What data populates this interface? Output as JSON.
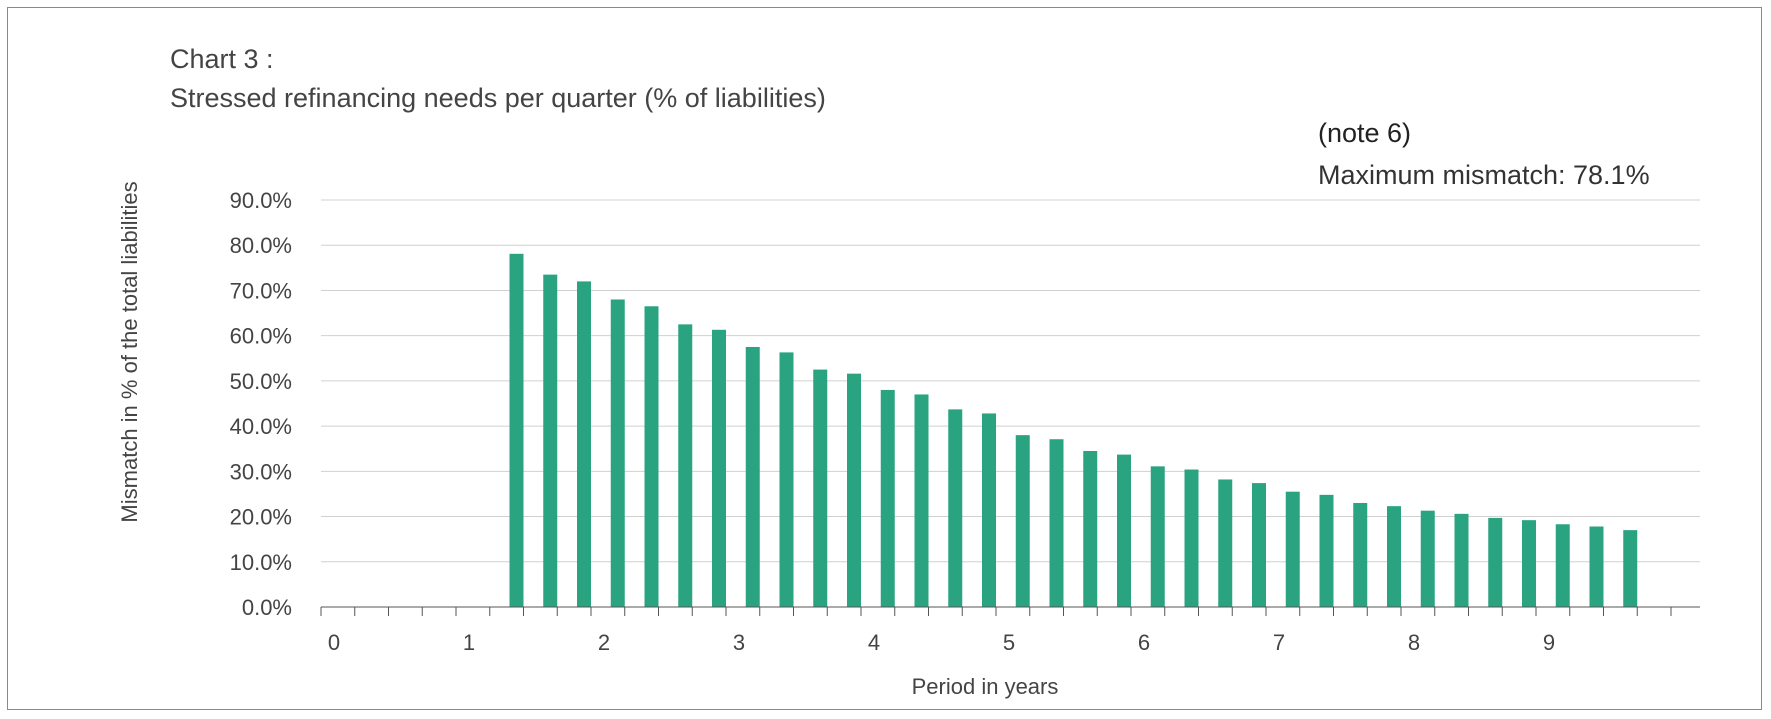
{
  "title_line1": "Chart 3 :",
  "title_line2": "Stressed refinancing needs per quarter  (% of liabilities)",
  "note": "(note 6)",
  "max_mismatch": "Maximum mismatch: 78.1%",
  "chart_data": {
    "type": "bar",
    "title": "Stressed refinancing needs per quarter  (% of liabilities)",
    "xlabel": "Period in years",
    "ylabel": "Mismatch in % of the total liabilities",
    "ylim": [
      0,
      90
    ],
    "yticks": [
      "0.0%",
      "10.0%",
      "20.0%",
      "30.0%",
      "40.0%",
      "50.0%",
      "60.0%",
      "70.0%",
      "80.0%",
      "90.0%"
    ],
    "xticks": [
      "0",
      "1",
      "2",
      "3",
      "4",
      "5",
      "6",
      "7",
      "8",
      "9"
    ],
    "grid": true,
    "bar_color": "#2aa381",
    "x": [
      1.5,
      1.75,
      2.0,
      2.25,
      2.5,
      2.75,
      3.0,
      3.25,
      3.5,
      3.75,
      4.0,
      4.25,
      4.5,
      4.75,
      5.0,
      5.25,
      5.5,
      5.75,
      6.0,
      6.25,
      6.5,
      6.75,
      7.0,
      7.25,
      7.5,
      7.75,
      8.0,
      8.25,
      8.5,
      8.75,
      9.0,
      9.25,
      9.5,
      9.75
    ],
    "values": [
      78.1,
      73.5,
      72.0,
      68.0,
      66.5,
      62.5,
      61.3,
      57.5,
      56.3,
      52.5,
      51.6,
      48.0,
      47.0,
      43.7,
      42.8,
      38.0,
      37.1,
      34.5,
      33.7,
      31.1,
      30.4,
      28.2,
      27.4,
      25.5,
      24.8,
      23.0,
      22.3,
      21.3,
      20.6,
      19.7,
      19.2,
      18.3,
      17.8,
      17.0
    ]
  }
}
